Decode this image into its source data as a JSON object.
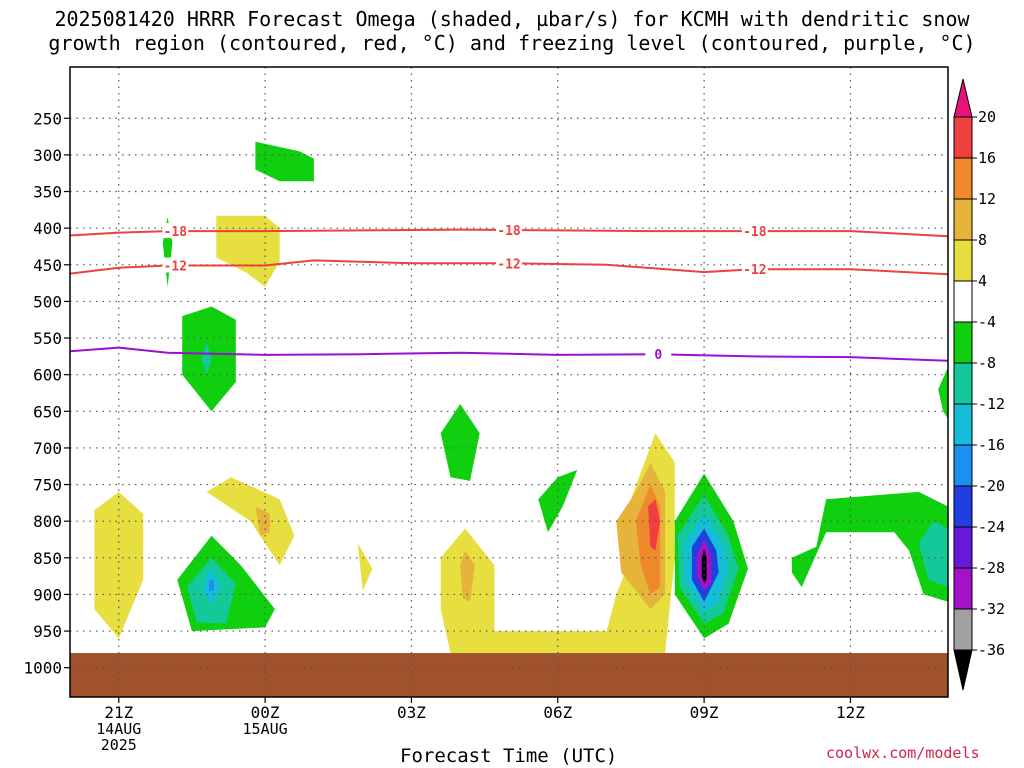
{
  "chart_data": {
    "type": "heatmap",
    "title": "2025081420 HRRR Forecast Omega (shaded, µbar/s) for KCMH with dendritic snow",
    "subtitle": "growth region (contoured, red, °C) and freezing level (contoured, purple, °C)",
    "xlabel": "Forecast Time (UTC)",
    "ylabel": "",
    "x_axis": {
      "unit": "UTC",
      "range": [
        "2025-08-14 20Z",
        "2025-08-15 14Z"
      ],
      "ticks": [
        {
          "x": "2025-08-14 21Z",
          "lines": [
            "21Z",
            "14AUG",
            "2025"
          ]
        },
        {
          "x": "2025-08-15 00Z",
          "lines": [
            "00Z",
            "15AUG"
          ]
        },
        {
          "x": "2025-08-15 03Z",
          "lines": [
            "03Z"
          ]
        },
        {
          "x": "2025-08-15 06Z",
          "lines": [
            "06Z"
          ]
        },
        {
          "x": "2025-08-15 09Z",
          "lines": [
            "09Z"
          ]
        },
        {
          "x": "2025-08-15 12Z",
          "lines": [
            "12Z"
          ]
        }
      ]
    },
    "y_axis": {
      "unit": "hPa",
      "range": [
        1040,
        180
      ],
      "ticks": [
        250,
        300,
        350,
        400,
        450,
        500,
        550,
        600,
        650,
        700,
        750,
        800,
        850,
        900,
        950,
        1000
      ]
    },
    "grid": true,
    "colorbar": {
      "levels": [
        20,
        16,
        12,
        8,
        4,
        -4,
        -8,
        -12,
        -16,
        -20,
        -24,
        -28,
        -32,
        -36
      ],
      "colors": [
        "#e8127a",
        "#ef4040",
        "#ef8a2c",
        "#e6b43a",
        "#e6df3f",
        "#ffffff",
        "#0fcf0f",
        "#13c99a",
        "#16bdd8",
        "#1d8ff0",
        "#1f3fe0",
        "#6a18d8",
        "#a312c8",
        "#a0a0a0",
        "#000000"
      ]
    },
    "contours": [
      {
        "name": "-18",
        "color": "#ef4040",
        "labels": [
          "-18",
          "-18",
          "-18"
        ],
        "points": [
          [
            "2025-08-14 20Z",
            410
          ],
          [
            "2025-08-14 21Z",
            406
          ],
          [
            "2025-08-14 22Z",
            404
          ],
          [
            "2025-08-15 00Z",
            404
          ],
          [
            "2025-08-15 02Z",
            403
          ],
          [
            "2025-08-15 04Z",
            402
          ],
          [
            "2025-08-15 06Z",
            403
          ],
          [
            "2025-08-15 08Z",
            404
          ],
          [
            "2025-08-15 10Z",
            404
          ],
          [
            "2025-08-15 12Z",
            404
          ],
          [
            "2025-08-15 14Z",
            411
          ]
        ]
      },
      {
        "name": "-12",
        "color": "#ef4040",
        "labels": [
          "-12",
          "-12",
          "-12"
        ],
        "points": [
          [
            "2025-08-14 20Z",
            462
          ],
          [
            "2025-08-14 21Z",
            454
          ],
          [
            "2025-08-14 22Z",
            451
          ],
          [
            "2025-08-15 00Z",
            451
          ],
          [
            "2025-08-15 01Z",
            444
          ],
          [
            "2025-08-15 03Z",
            448
          ],
          [
            "2025-08-15 05Z",
            448
          ],
          [
            "2025-08-15 07Z",
            450
          ],
          [
            "2025-08-15 09Z",
            460
          ],
          [
            "2025-08-15 10Z",
            456
          ],
          [
            "2025-08-15 12Z",
            456
          ],
          [
            "2025-08-15 14Z",
            463
          ]
        ]
      },
      {
        "name": "0",
        "color": "#9b10cc",
        "labels": [
          "0"
        ],
        "points": [
          [
            "2025-08-14 20Z",
            568
          ],
          [
            "2025-08-14 21Z",
            563
          ],
          [
            "2025-08-14 22Z",
            570
          ],
          [
            "2025-08-15 00Z",
            573
          ],
          [
            "2025-08-15 02Z",
            572
          ],
          [
            "2025-08-15 04Z",
            570
          ],
          [
            "2025-08-15 06Z",
            573
          ],
          [
            "2025-08-15 08Z",
            572
          ],
          [
            "2025-08-15 10Z",
            575
          ],
          [
            "2025-08-15 12Z",
            576
          ],
          [
            "2025-08-15 14Z",
            581
          ]
        ]
      }
    ],
    "omega_regions": [
      {
        "value": -4,
        "points": [
          [
            "2025-08-14 23.8Z",
            282
          ],
          [
            "2025-08-15 00.7Z",
            295
          ],
          [
            "2025-08-15 01.0Z",
            305
          ],
          [
            "2025-08-15 01.0Z",
            336
          ],
          [
            "2025-08-15 00.3Z",
            336
          ],
          [
            "2025-08-14 23.8Z",
            320
          ]
        ]
      },
      {
        "value": 4,
        "points": [
          [
            "2025-08-14 23.0Z",
            383
          ],
          [
            "2025-08-15 00.0Z",
            383
          ],
          [
            "2025-08-15 00.3Z",
            400
          ],
          [
            "2025-08-15 00.3Z",
            445
          ],
          [
            "2025-08-15 00.0Z",
            480
          ],
          [
            "2025-08-14 23.6Z",
            460
          ],
          [
            "2025-08-14 23.0Z",
            440
          ]
        ]
      },
      {
        "value": -4,
        "points": [
          [
            "2025-08-14 22.0Z",
            385
          ],
          [
            "2025-08-14 22.1Z",
            420
          ],
          [
            "2025-08-14 22.0Z",
            480
          ],
          [
            "2025-08-14 21.9Z",
            420
          ]
        ]
      },
      {
        "value": -4,
        "points": [
          [
            "2025-08-14 22.3Z",
            520
          ],
          [
            "2025-08-14 22.9Z",
            507
          ],
          [
            "2025-08-14 23.4Z",
            525
          ],
          [
            "2025-08-14 23.4Z",
            610
          ],
          [
            "2025-08-14 22.9Z",
            650
          ],
          [
            "2025-08-14 22.3Z",
            600
          ]
        ]
      },
      {
        "value": -8,
        "points": [
          [
            "2025-08-14 22.8Z",
            555
          ],
          [
            "2025-08-14 22.9Z",
            580
          ],
          [
            "2025-08-14 22.8Z",
            600
          ],
          [
            "2025-08-14 22.7Z",
            580
          ]
        ]
      },
      {
        "value": 4,
        "points": [
          [
            "2025-08-14 20.5Z",
            785
          ],
          [
            "2025-08-14 21.0Z",
            760
          ],
          [
            "2025-08-14 21.5Z",
            790
          ],
          [
            "2025-08-14 21.5Z",
            880
          ],
          [
            "2025-08-14 21.0Z",
            960
          ],
          [
            "2025-08-14 20.5Z",
            920
          ]
        ]
      },
      {
        "value": 4,
        "points": [
          [
            "2025-08-14 22.8Z",
            760
          ],
          [
            "2025-08-14 23.3Z",
            740
          ],
          [
            "2025-08-15 00.3Z",
            770
          ],
          [
            "2025-08-15 00.6Z",
            820
          ],
          [
            "2025-08-15 00.3Z",
            860
          ],
          [
            "2025-08-14 23.7Z",
            800
          ]
        ]
      },
      {
        "value": 8,
        "points": [
          [
            "2025-08-14 23.8Z",
            780
          ],
          [
            "2025-08-15 00.1Z",
            790
          ],
          [
            "2025-08-15 00.1Z",
            815
          ],
          [
            "2025-08-14 23.9Z",
            820
          ]
        ]
      },
      {
        "value": -4,
        "points": [
          [
            "2025-08-14 22.2Z",
            880
          ],
          [
            "2025-08-14 22.9Z",
            820
          ],
          [
            "2025-08-14 23.5Z",
            860
          ],
          [
            "2025-08-15 00.2Z",
            920
          ],
          [
            "2025-08-15 00.0Z",
            945
          ],
          [
            "2025-08-14 22.5Z",
            950
          ]
        ]
      },
      {
        "value": -8,
        "points": [
          [
            "2025-08-14 22.4Z",
            890
          ],
          [
            "2025-08-14 22.9Z",
            850
          ],
          [
            "2025-08-14 23.4Z",
            885
          ],
          [
            "2025-08-14 23.2Z",
            940
          ],
          [
            "2025-08-14 22.6Z",
            938
          ]
        ]
      },
      {
        "value": -12,
        "points": [
          [
            "2025-08-14 22.7Z",
            890
          ],
          [
            "2025-08-14 22.9Z",
            865
          ],
          [
            "2025-08-14 23.1Z",
            890
          ],
          [
            "2025-08-14 22.9Z",
            915
          ]
        ]
      },
      {
        "value": -16,
        "points": [
          [
            "2025-08-14 22.85Z",
            880
          ],
          [
            "2025-08-14 22.95Z",
            880
          ],
          [
            "2025-08-14 22.95Z",
            895
          ],
          [
            "2025-08-14 22.85Z",
            895
          ]
        ]
      },
      {
        "value": 4,
        "points": [
          [
            "2025-08-15 01.9Z",
            830
          ],
          [
            "2025-08-15 02.2Z",
            865
          ],
          [
            "2025-08-15 02.0Z",
            895
          ]
        ]
      },
      {
        "value": -4,
        "points": [
          [
            "2025-08-15 03.6Z",
            680
          ],
          [
            "2025-08-15 04.0Z",
            640
          ],
          [
            "2025-08-15 04.4Z",
            680
          ],
          [
            "2025-08-15 04.2Z",
            745
          ],
          [
            "2025-08-15 03.8Z",
            740
          ]
        ]
      },
      {
        "value": 4,
        "points": [
          [
            "2025-08-15 03.6Z",
            850
          ],
          [
            "2025-08-15 04.1Z",
            810
          ],
          [
            "2025-08-15 04.7Z",
            860
          ],
          [
            "2025-08-15 04.7Z",
            950
          ],
          [
            "2025-08-15 07.0Z",
            950
          ],
          [
            "2025-08-15 07.2Z",
            900
          ],
          [
            "2025-08-15 07.5Z",
            850
          ],
          [
            "2025-08-15 07.5Z",
            770
          ],
          [
            "2025-08-15 08.0Z",
            680
          ],
          [
            "2025-08-15 08.4Z",
            720
          ],
          [
            "2025-08-15 08.4Z",
            850
          ],
          [
            "2025-08-15 08.2Z",
            980
          ],
          [
            "2025-08-15 03.8Z",
            980
          ],
          [
            "2025-08-15 03.6Z",
            920
          ]
        ]
      },
      {
        "value": 8,
        "points": [
          [
            "2025-08-15 04.0Z",
            860
          ],
          [
            "2025-08-15 04.1Z",
            840
          ],
          [
            "2025-08-15 04.3Z",
            860
          ],
          [
            "2025-08-15 04.2Z",
            910
          ],
          [
            "2025-08-15 04.05Z",
            905
          ]
        ]
      },
      {
        "value": 8,
        "points": [
          [
            "2025-08-15 07.2Z",
            800
          ],
          [
            "2025-08-15 07.6Z",
            760
          ],
          [
            "2025-08-15 07.9Z",
            720
          ],
          [
            "2025-08-15 08.2Z",
            760
          ],
          [
            "2025-08-15 08.2Z",
            900
          ],
          [
            "2025-08-15 07.9Z",
            920
          ],
          [
            "2025-08-15 07.3Z",
            870
          ]
        ]
      },
      {
        "value": 12,
        "points": [
          [
            "2025-08-15 07.6Z",
            800
          ],
          [
            "2025-08-15 07.9Z",
            750
          ],
          [
            "2025-08-15 08.1Z",
            780
          ],
          [
            "2025-08-15 08.1Z",
            890
          ],
          [
            "2025-08-15 07.9Z",
            900
          ],
          [
            "2025-08-15 07.7Z",
            860
          ]
        ]
      },
      {
        "value": 16,
        "points": [
          [
            "2025-08-15 07.85Z",
            780
          ],
          [
            "2025-08-15 08.0Z",
            770
          ],
          [
            "2025-08-15 08.1Z",
            800
          ],
          [
            "2025-08-15 08.0Z",
            840
          ],
          [
            "2025-08-15 07.9Z",
            835
          ]
        ]
      },
      {
        "value": -4,
        "points": [
          [
            "2025-08-15 05.6Z",
            770
          ],
          [
            "2025-08-15 06.0Z",
            740
          ],
          [
            "2025-08-15 06.4Z",
            730
          ],
          [
            "2025-08-15 06.1Z",
            780
          ],
          [
            "2025-08-15 05.8Z",
            815
          ]
        ]
      },
      {
        "value": -4,
        "points": [
          [
            "2025-08-15 08.4Z",
            800
          ],
          [
            "2025-08-15 09.0Z",
            735
          ],
          [
            "2025-08-15 09.6Z",
            800
          ],
          [
            "2025-08-15 09.9Z",
            865
          ],
          [
            "2025-08-15 09.5Z",
            940
          ],
          [
            "2025-08-15 09.0Z",
            960
          ],
          [
            "2025-08-15 08.4Z",
            900
          ]
        ]
      },
      {
        "value": -8,
        "points": [
          [
            "2025-08-15 08.45Z",
            820
          ],
          [
            "2025-08-15 09.0Z",
            765
          ],
          [
            "2025-08-15 09.5Z",
            820
          ],
          [
            "2025-08-15 09.7Z",
            865
          ],
          [
            "2025-08-15 09.4Z",
            925
          ],
          [
            "2025-08-15 09.0Z",
            940
          ],
          [
            "2025-08-15 08.5Z",
            890
          ]
        ]
      },
      {
        "value": -12,
        "points": [
          [
            "2025-08-15 08.6Z",
            830
          ],
          [
            "2025-08-15 09.0Z",
            790
          ],
          [
            "2025-08-15 09.4Z",
            830
          ],
          [
            "2025-08-15 09.5Z",
            865
          ],
          [
            "2025-08-15 09.3Z",
            910
          ],
          [
            "2025-08-15 09.0Z",
            925
          ],
          [
            "2025-08-15 08.6Z",
            880
          ]
        ]
      },
      {
        "value": -20,
        "points": [
          [
            "2025-08-15 08.75Z",
            835
          ],
          [
            "2025-08-15 09.0Z",
            810
          ],
          [
            "2025-08-15 09.25Z",
            840
          ],
          [
            "2025-08-15 09.3Z",
            870
          ],
          [
            "2025-08-15 09.0Z",
            910
          ],
          [
            "2025-08-15 08.75Z",
            880
          ]
        ]
      },
      {
        "value": -28,
        "points": [
          [
            "2025-08-15 08.85Z",
            845
          ],
          [
            "2025-08-15 09.0Z",
            825
          ],
          [
            "2025-08-15 09.15Z",
            845
          ],
          [
            "2025-08-15 09.15Z",
            885
          ],
          [
            "2025-08-15 09.0Z",
            895
          ],
          [
            "2025-08-15 08.85Z",
            875
          ]
        ]
      },
      {
        "value": -36,
        "points": [
          [
            "2025-08-15 08.95Z",
            850
          ],
          [
            "2025-08-15 09.0Z",
            838
          ],
          [
            "2025-08-15 09.05Z",
            850
          ],
          [
            "2025-08-15 09.05Z",
            880
          ],
          [
            "2025-08-15 09.0Z",
            885
          ],
          [
            "2025-08-15 08.95Z",
            875
          ]
        ]
      },
      {
        "value": -4,
        "points": [
          [
            "2025-08-15 10.8Z",
            850
          ],
          [
            "2025-08-15 11.3Z",
            835
          ],
          [
            "2025-08-15 11.5Z",
            770
          ],
          [
            "2025-08-15 13.4Z",
            760
          ],
          [
            "2025-08-15 14.0Z",
            780
          ],
          [
            "2025-08-15 14.0Z",
            910
          ],
          [
            "2025-08-15 13.5Z",
            900
          ],
          [
            "2025-08-15 13.2Z",
            840
          ],
          [
            "2025-08-15 12.9Z",
            815
          ],
          [
            "2025-08-15 11.5Z",
            815
          ],
          [
            "2025-08-15 11.0Z",
            890
          ],
          [
            "2025-08-15 10.8Z",
            870
          ]
        ]
      },
      {
        "value": -8,
        "points": [
          [
            "2025-08-15 13.4Z",
            830
          ],
          [
            "2025-08-15 13.7Z",
            800
          ],
          [
            "2025-08-15 14.0Z",
            810
          ],
          [
            "2025-08-15 14.0Z",
            890
          ],
          [
            "2025-08-15 13.6Z",
            880
          ]
        ]
      },
      {
        "value": -4,
        "points": [
          [
            "2025-08-15 13.8Z",
            620
          ],
          [
            "2025-08-15 14.0Z",
            590
          ],
          [
            "2025-08-15 14.0Z",
            660
          ],
          [
            "2025-08-15 13.9Z",
            650
          ]
        ]
      }
    ],
    "terrain": {
      "color": "#a0522d",
      "bottom_level_hPa": 980
    }
  },
  "credit": "coolwx.com/models"
}
